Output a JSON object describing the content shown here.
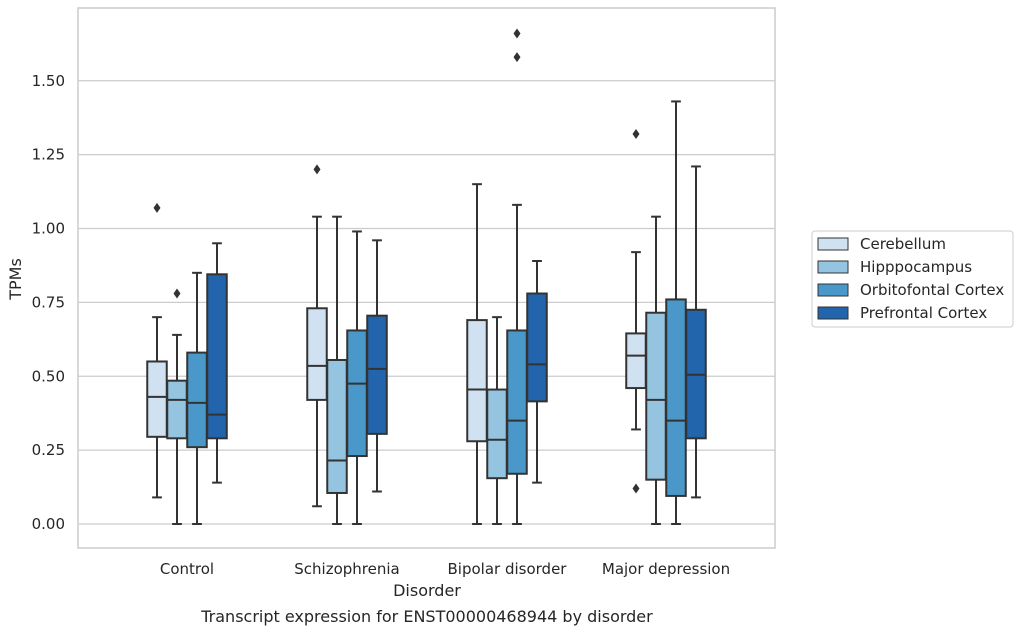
{
  "chart_data": {
    "type": "box",
    "title": "Transcript expression for ENST00000468944 by disorder",
    "xlabel": "Disorder",
    "ylabel": "TPMs",
    "ylim": [
      -0.08,
      1.75
    ],
    "yticks": [
      "0.00",
      "0.25",
      "0.50",
      "0.75",
      "1.00",
      "1.25",
      "1.50"
    ],
    "grid": true,
    "legend_position": "right",
    "categories": [
      "Control",
      "Schizophrenia",
      "Bipolar disorder",
      "Major depression"
    ],
    "series": [
      {
        "name": "Cerebellum",
        "color": "#d0e1f2",
        "boxes": [
          {
            "whisker_low": 0.09,
            "q1": 0.295,
            "median": 0.43,
            "q3": 0.55,
            "whisker_high": 0.7,
            "outliers": [
              1.07
            ]
          },
          {
            "whisker_low": 0.06,
            "q1": 0.42,
            "median": 0.535,
            "q3": 0.73,
            "whisker_high": 1.04,
            "outliers": [
              1.2
            ]
          },
          {
            "whisker_low": 0.0,
            "q1": 0.28,
            "median": 0.455,
            "q3": 0.69,
            "whisker_high": 1.15,
            "outliers": []
          },
          {
            "whisker_low": 0.32,
            "q1": 0.46,
            "median": 0.57,
            "q3": 0.645,
            "whisker_high": 0.92,
            "outliers": [
              0.12,
              1.32
            ]
          }
        ]
      },
      {
        "name": "Hipppocampus",
        "color": "#94c4df",
        "boxes": [
          {
            "whisker_low": 0.0,
            "q1": 0.29,
            "median": 0.42,
            "q3": 0.485,
            "whisker_high": 0.64,
            "outliers": [
              0.78
            ]
          },
          {
            "whisker_low": 0.0,
            "q1": 0.105,
            "median": 0.215,
            "q3": 0.555,
            "whisker_high": 1.04,
            "outliers": []
          },
          {
            "whisker_low": 0.0,
            "q1": 0.155,
            "median": 0.285,
            "q3": 0.455,
            "whisker_high": 0.7,
            "outliers": []
          },
          {
            "whisker_low": 0.0,
            "q1": 0.15,
            "median": 0.42,
            "q3": 0.715,
            "whisker_high": 1.04,
            "outliers": []
          }
        ]
      },
      {
        "name": "Orbitofontal Cortex",
        "color": "#4a98c9",
        "boxes": [
          {
            "whisker_low": 0.0,
            "q1": 0.26,
            "median": 0.41,
            "q3": 0.58,
            "whisker_high": 0.85,
            "outliers": []
          },
          {
            "whisker_low": 0.0,
            "q1": 0.23,
            "median": 0.475,
            "q3": 0.655,
            "whisker_high": 0.99,
            "outliers": []
          },
          {
            "whisker_low": 0.0,
            "q1": 0.17,
            "median": 0.35,
            "q3": 0.655,
            "whisker_high": 1.08,
            "outliers": [
              1.58,
              1.66
            ]
          },
          {
            "whisker_low": 0.0,
            "q1": 0.095,
            "median": 0.35,
            "q3": 0.76,
            "whisker_high": 1.43,
            "outliers": []
          }
        ]
      },
      {
        "name": "Prefrontal Cortex",
        "color": "#2265ac",
        "boxes": [
          {
            "whisker_low": 0.14,
            "q1": 0.29,
            "median": 0.37,
            "q3": 0.845,
            "whisker_high": 0.95,
            "outliers": []
          },
          {
            "whisker_low": 0.11,
            "q1": 0.305,
            "median": 0.525,
            "q3": 0.705,
            "whisker_high": 0.96,
            "outliers": []
          },
          {
            "whisker_low": 0.14,
            "q1": 0.415,
            "median": 0.54,
            "q3": 0.78,
            "whisker_high": 0.89,
            "outliers": []
          },
          {
            "whisker_low": 0.09,
            "q1": 0.29,
            "median": 0.505,
            "q3": 0.725,
            "whisker_high": 1.21,
            "outliers": []
          }
        ]
      }
    ]
  },
  "colors": {
    "grid": "#cccccc",
    "frame": "#cccccc",
    "box_edge": "#333333"
  }
}
